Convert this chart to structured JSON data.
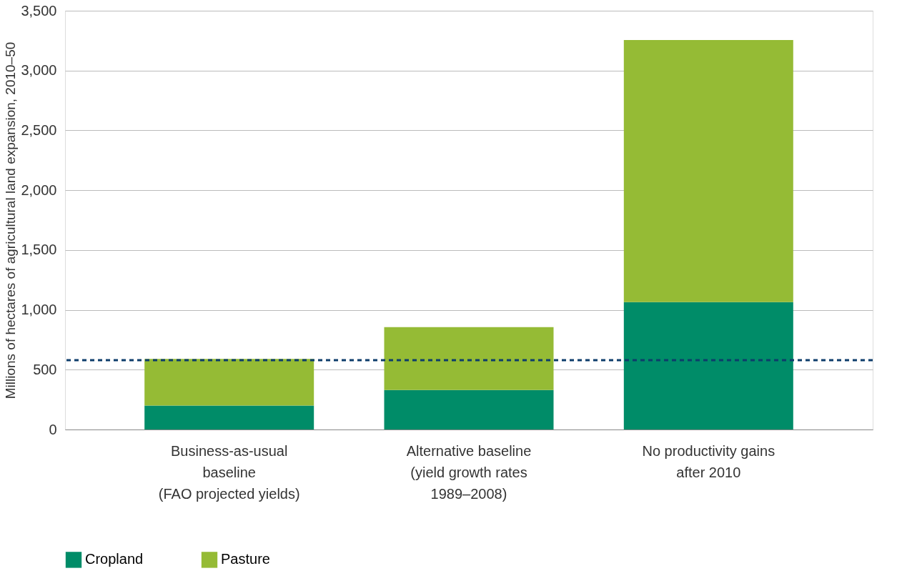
{
  "chart_data": {
    "type": "bar",
    "stacked": true,
    "ylabel": "Millions of hectares of agricultural land expansion, 2010–50",
    "categories": [
      "Business-as-usual\nbaseline\n(FAO projected yields)",
      "Alternative baseline\n(yield growth rates\n1989–2008)",
      "No productivity gains\nafter 2010"
    ],
    "series": [
      {
        "name": "Cropland",
        "color": "#008c68",
        "values": [
          200,
          330,
          1065
        ]
      },
      {
        "name": "Pasture",
        "color": "#95bb35",
        "values": [
          390,
          525,
          2190
        ]
      }
    ],
    "ylim": [
      0,
      3500
    ],
    "yticks": [
      0,
      {
        "value": 500,
        "label": "500"
      },
      {
        "value": 1000,
        "label": "1,000"
      },
      {
        "value": 1500,
        "label": "1,500"
      },
      {
        "value": 2000,
        "label": "2,000"
      },
      {
        "value": 2500,
        "label": "2,500"
      },
      {
        "value": 3000,
        "label": "3,000"
      },
      {
        "value": 3500,
        "label": "3,500"
      }
    ],
    "ref_lines": [
      {
        "axis": "y",
        "value": 580,
        "color": "#0d3d6b",
        "line_style": "dashed"
      }
    ],
    "grid": "y",
    "legend": "bottom"
  }
}
